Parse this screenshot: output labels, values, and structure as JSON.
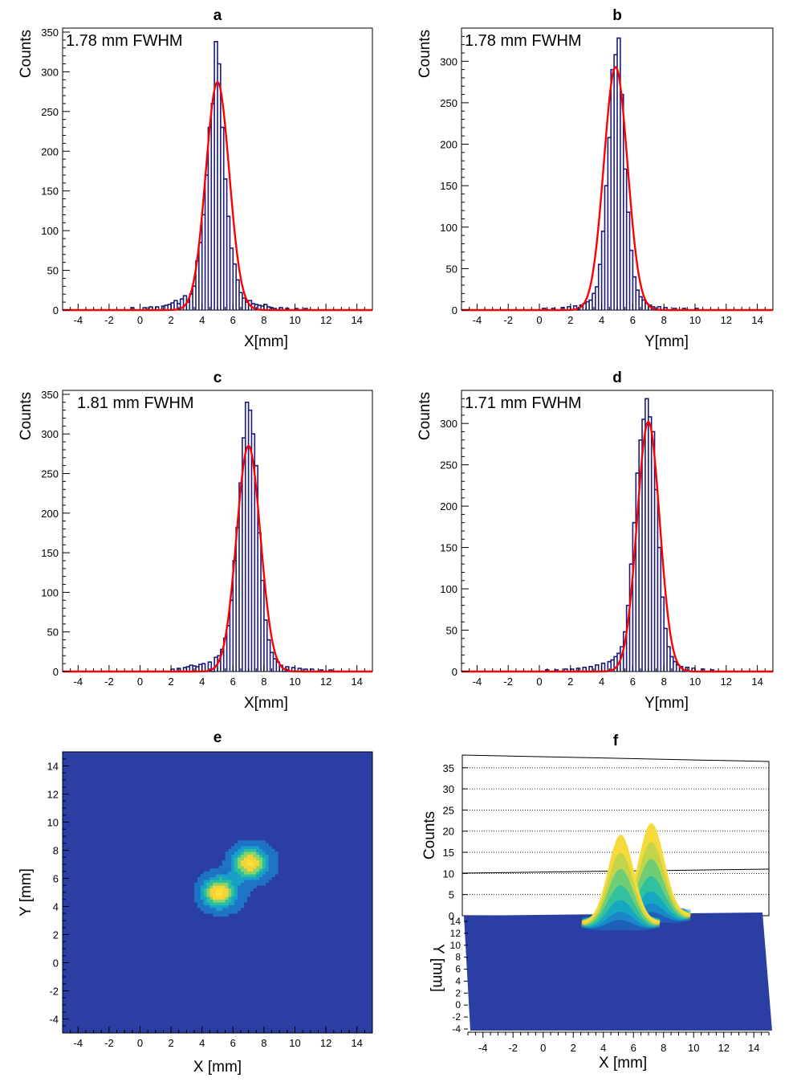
{
  "colors": {
    "histogram": "#1a1a7a",
    "fit": "#ff0000",
    "map_background": "#2a3ea3",
    "axis": "#000000"
  },
  "chart_data": [
    {
      "id": "a",
      "type": "line",
      "title": "a",
      "xlabel": "X[mm]",
      "ylabel": "Counts",
      "annotation": "1.78 mm FWHM",
      "xlim": [
        -5,
        15
      ],
      "ylim": [
        0,
        355
      ],
      "xticks": [
        -4,
        -2,
        0,
        2,
        4,
        6,
        8,
        10,
        12,
        14
      ],
      "yticks": [
        0,
        50,
        100,
        150,
        200,
        250,
        300,
        350
      ],
      "bin_width": 0.2,
      "series": [
        {
          "name": "",
          "kind": "histogram",
          "bins": [
            [
              -0.6,
              3
            ],
            [
              0.2,
              3
            ],
            [
              0.6,
              4
            ],
            [
              1.0,
              4
            ],
            [
              1.4,
              5
            ],
            [
              1.6,
              6
            ],
            [
              1.8,
              7
            ],
            [
              2.0,
              9
            ],
            [
              2.2,
              12
            ],
            [
              2.4,
              8
            ],
            [
              2.6,
              14
            ],
            [
              2.8,
              18
            ],
            [
              3.0,
              10
            ],
            [
              3.2,
              20
            ],
            [
              3.4,
              30
            ],
            [
              3.6,
              62
            ],
            [
              3.8,
              85
            ],
            [
              4.0,
              120
            ],
            [
              4.2,
              170
            ],
            [
              4.4,
              230
            ],
            [
              4.6,
              260
            ],
            [
              4.8,
              338
            ],
            [
              5.0,
              310
            ],
            [
              5.2,
              230
            ],
            [
              5.4,
              165
            ],
            [
              5.6,
              118
            ],
            [
              5.8,
              78
            ],
            [
              6.0,
              58
            ],
            [
              6.2,
              38
            ],
            [
              6.4,
              22
            ],
            [
              6.6,
              15
            ],
            [
              6.8,
              10
            ],
            [
              7.0,
              12
            ],
            [
              7.2,
              8
            ],
            [
              7.4,
              7
            ],
            [
              7.6,
              6
            ],
            [
              7.8,
              5
            ],
            [
              8.0,
              7
            ],
            [
              8.2,
              4
            ],
            [
              8.4,
              3
            ],
            [
              8.6,
              2
            ],
            [
              9.0,
              3
            ],
            [
              9.4,
              2
            ],
            [
              10.0,
              2
            ],
            [
              10.6,
              2
            ]
          ]
        },
        {
          "name": "",
          "kind": "gaussian_fit",
          "amplitude": 287,
          "mean": 5.0,
          "fwhm": 1.78
        }
      ]
    },
    {
      "id": "b",
      "type": "line",
      "title": "b",
      "xlabel": "Y[mm]",
      "ylabel": "Counts",
      "annotation": "1.78 mm FWHM",
      "xlim": [
        -5,
        15
      ],
      "ylim": [
        0,
        340
      ],
      "xticks": [
        -4,
        -2,
        0,
        2,
        4,
        6,
        8,
        10,
        12,
        14
      ],
      "yticks": [
        0,
        50,
        100,
        150,
        200,
        250,
        300
      ],
      "bin_width": 0.2,
      "series": [
        {
          "name": "",
          "kind": "histogram",
          "bins": [
            [
              0.2,
              2
            ],
            [
              0.8,
              2
            ],
            [
              1.4,
              3
            ],
            [
              1.8,
              4
            ],
            [
              2.2,
              5
            ],
            [
              2.6,
              6
            ],
            [
              2.8,
              8
            ],
            [
              3.0,
              10
            ],
            [
              3.2,
              12
            ],
            [
              3.4,
              20
            ],
            [
              3.6,
              28
            ],
            [
              3.8,
              55
            ],
            [
              4.0,
              95
            ],
            [
              4.2,
              150
            ],
            [
              4.4,
              208
            ],
            [
              4.6,
              290
            ],
            [
              4.8,
              308
            ],
            [
              5.0,
              328
            ],
            [
              5.2,
              260
            ],
            [
              5.4,
              170
            ],
            [
              5.6,
              118
            ],
            [
              5.8,
              72
            ],
            [
              6.0,
              40
            ],
            [
              6.2,
              24
            ],
            [
              6.4,
              16
            ],
            [
              6.6,
              12
            ],
            [
              6.8,
              8
            ],
            [
              7.0,
              6
            ],
            [
              7.2,
              4
            ],
            [
              7.6,
              4
            ],
            [
              8.0,
              3
            ],
            [
              8.6,
              2
            ],
            [
              9.2,
              2
            ],
            [
              10.0,
              2
            ]
          ]
        },
        {
          "name": "",
          "kind": "gaussian_fit",
          "amplitude": 293,
          "mean": 4.9,
          "fwhm": 1.78
        }
      ]
    },
    {
      "id": "c",
      "type": "line",
      "title": "c",
      "xlabel": "X[mm]",
      "ylabel": "Counts",
      "annotation": "1.81 mm FWHM",
      "xlim": [
        -5,
        15
      ],
      "ylim": [
        0,
        355
      ],
      "xticks": [
        -4,
        -2,
        0,
        2,
        4,
        6,
        8,
        10,
        12,
        14
      ],
      "yticks": [
        0,
        50,
        100,
        150,
        200,
        250,
        300,
        350
      ],
      "bin_width": 0.2,
      "series": [
        {
          "name": "",
          "kind": "histogram",
          "bins": [
            [
              2.0,
              3
            ],
            [
              2.4,
              4
            ],
            [
              2.8,
              5
            ],
            [
              3.0,
              6
            ],
            [
              3.2,
              8
            ],
            [
              3.4,
              7
            ],
            [
              3.6,
              6
            ],
            [
              3.8,
              9
            ],
            [
              4.0,
              10
            ],
            [
              4.4,
              12
            ],
            [
              4.8,
              18
            ],
            [
              5.0,
              20
            ],
            [
              5.2,
              28
            ],
            [
              5.4,
              42
            ],
            [
              5.6,
              58
            ],
            [
              5.8,
              90
            ],
            [
              6.0,
              140
            ],
            [
              6.2,
              182
            ],
            [
              6.4,
              238
            ],
            [
              6.6,
              295
            ],
            [
              6.8,
              340
            ],
            [
              7.0,
              330
            ],
            [
              7.2,
              300
            ],
            [
              7.4,
              260
            ],
            [
              7.6,
              175
            ],
            [
              7.8,
              115
            ],
            [
              8.0,
              65
            ],
            [
              8.2,
              40
            ],
            [
              8.4,
              24
            ],
            [
              8.6,
              16
            ],
            [
              8.8,
              12
            ],
            [
              9.0,
              8
            ],
            [
              9.4,
              6
            ],
            [
              9.8,
              5
            ],
            [
              10.2,
              4
            ],
            [
              10.6,
              3
            ],
            [
              11.0,
              3
            ],
            [
              11.6,
              2
            ],
            [
              12.2,
              2
            ]
          ]
        },
        {
          "name": "",
          "kind": "gaussian_fit",
          "amplitude": 285,
          "mean": 7.0,
          "fwhm": 1.81
        }
      ]
    },
    {
      "id": "d",
      "type": "line",
      "title": "d",
      "xlabel": "Y[mm]",
      "ylabel": "Counts",
      "annotation": "1.71 mm FWHM",
      "xlim": [
        -5,
        15
      ],
      "ylim": [
        0,
        340
      ],
      "xticks": [
        -4,
        -2,
        0,
        2,
        4,
        6,
        8,
        10,
        12,
        14
      ],
      "yticks": [
        0,
        50,
        100,
        150,
        200,
        250,
        300
      ],
      "bin_width": 0.2,
      "series": [
        {
          "name": "",
          "kind": "histogram",
          "bins": [
            [
              0.4,
              2
            ],
            [
              1.0,
              2
            ],
            [
              1.6,
              3
            ],
            [
              2.0,
              3
            ],
            [
              2.4,
              4
            ],
            [
              2.8,
              5
            ],
            [
              3.2,
              6
            ],
            [
              3.6,
              8
            ],
            [
              4.0,
              10
            ],
            [
              4.4,
              12
            ],
            [
              4.6,
              14
            ],
            [
              4.8,
              18
            ],
            [
              5.0,
              22
            ],
            [
              5.2,
              30
            ],
            [
              5.4,
              48
            ],
            [
              5.6,
              80
            ],
            [
              5.8,
              130
            ],
            [
              6.0,
              180
            ],
            [
              6.2,
              240
            ],
            [
              6.4,
              280
            ],
            [
              6.6,
              305
            ],
            [
              6.8,
              330
            ],
            [
              7.0,
              308
            ],
            [
              7.2,
              290
            ],
            [
              7.4,
              220
            ],
            [
              7.6,
              150
            ],
            [
              7.8,
              90
            ],
            [
              8.0,
              52
            ],
            [
              8.2,
              30
            ],
            [
              8.4,
              18
            ],
            [
              8.6,
              12
            ],
            [
              8.8,
              8
            ],
            [
              9.0,
              6
            ],
            [
              9.4,
              5
            ],
            [
              9.8,
              4
            ],
            [
              10.4,
              3
            ],
            [
              11.0,
              2
            ]
          ]
        },
        {
          "name": "",
          "kind": "gaussian_fit",
          "amplitude": 302,
          "mean": 7.0,
          "fwhm": 1.71
        }
      ]
    },
    {
      "id": "e",
      "type": "heatmap",
      "title": "e",
      "xlabel": "X [mm]",
      "ylabel": "Y [mm]",
      "xlim": [
        -5,
        15
      ],
      "ylim": [
        -5,
        15
      ],
      "xticks": [
        -4,
        -2,
        0,
        2,
        4,
        6,
        8,
        10,
        12,
        14
      ],
      "yticks": [
        -4,
        -2,
        0,
        2,
        4,
        6,
        8,
        10,
        12,
        14
      ],
      "peaks": [
        {
          "x": 5.0,
          "y": 4.9,
          "sigma": 0.8
        },
        {
          "x": 7.0,
          "y": 7.0,
          "sigma": 0.8
        }
      ],
      "colormap": [
        "#2a3ea3",
        "#1f73c4",
        "#18a0c8",
        "#2bbf9e",
        "#8ad26a",
        "#f0d43a",
        "#ffe033"
      ]
    },
    {
      "id": "f",
      "type": "area",
      "title": "f",
      "xlabel": "X [mm]",
      "ylabel": "Y [mm]",
      "zlabel": "Counts",
      "xlim": [
        -5,
        15
      ],
      "ylim": [
        -4,
        14
      ],
      "zlim": [
        0,
        38
      ],
      "xticks": [
        -4,
        -2,
        0,
        2,
        4,
        6,
        8,
        10,
        12,
        14
      ],
      "yticks": [
        -4,
        -2,
        0,
        2,
        4,
        6,
        8,
        10,
        12,
        14
      ],
      "zticks": [
        0,
        5,
        10,
        15,
        20,
        25,
        30,
        35
      ],
      "peaks": [
        {
          "x": 5.0,
          "y": 4.9,
          "height": 21
        },
        {
          "x": 7.0,
          "y": 7.0,
          "height": 22
        }
      ]
    }
  ]
}
